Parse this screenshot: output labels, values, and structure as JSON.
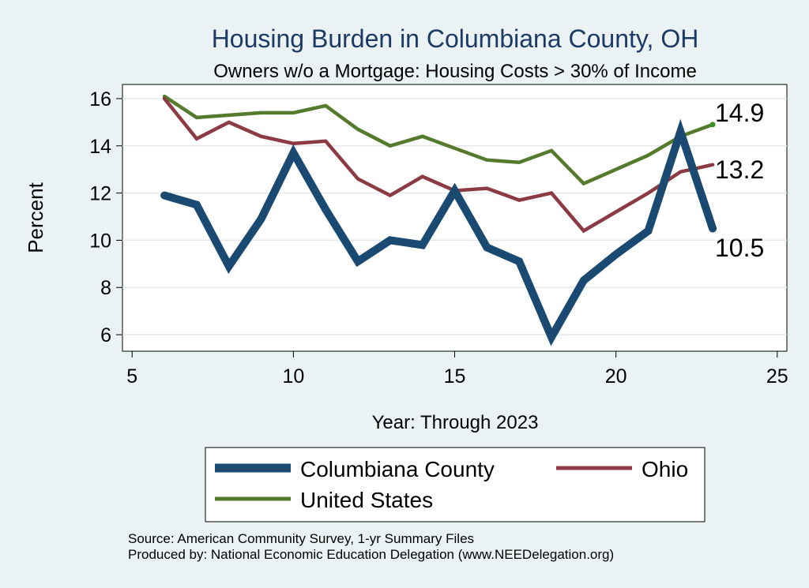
{
  "chart_data": {
    "type": "line",
    "title": "Housing Burden in Columbiana County, OH",
    "subtitle": "Owners w/o a Mortgage: Housing Costs > 30% of Income",
    "xlabel": "Year: Through 2023",
    "ylabel": "Percent",
    "xlim": [
      4.7,
      25.3
    ],
    "ylim": [
      5.3,
      16.6
    ],
    "xticks": [
      5,
      10,
      15,
      20,
      25
    ],
    "yticks": [
      6,
      8,
      10,
      12,
      14,
      16
    ],
    "grid": true,
    "legend_position": "bottom",
    "series": [
      {
        "name": "Columbiana County",
        "color": "#1a4a72",
        "width": "thick",
        "x": [
          6,
          7,
          8,
          9,
          10,
          11,
          12,
          13,
          14,
          15,
          16,
          17,
          18,
          19,
          20,
          21,
          22,
          23
        ],
        "values": [
          11.9,
          11.5,
          8.9,
          10.9,
          13.7,
          11.3,
          9.1,
          10.0,
          9.8,
          12.1,
          9.7,
          9.1,
          5.9,
          8.3,
          9.4,
          10.4,
          14.6,
          10.5
        ],
        "end_label": "10.5"
      },
      {
        "name": "Ohio",
        "color": "#8c3a44",
        "width": "medium",
        "x": [
          6,
          7,
          8,
          9,
          10,
          11,
          12,
          13,
          14,
          15,
          16,
          17,
          18,
          19,
          20,
          21,
          22,
          23
        ],
        "values": [
          16.0,
          14.3,
          15.0,
          14.4,
          14.1,
          14.2,
          12.6,
          11.9,
          12.7,
          12.1,
          12.2,
          11.7,
          12.0,
          10.4,
          11.2,
          12.0,
          12.9,
          13.2
        ],
        "end_label": "13.2"
      },
      {
        "name": "United States",
        "color": "#557a2c",
        "width": "medium",
        "x": [
          6,
          7,
          8,
          9,
          10,
          11,
          12,
          13,
          14,
          15,
          16,
          17,
          18,
          19,
          20,
          21,
          22,
          23
        ],
        "values": [
          16.1,
          15.2,
          15.3,
          15.4,
          15.4,
          15.7,
          14.7,
          14.0,
          14.4,
          13.9,
          13.4,
          13.3,
          13.8,
          12.4,
          13.0,
          13.6,
          14.4,
          14.9
        ],
        "end_label": "14.9"
      }
    ]
  },
  "footer": {
    "source": "Source: American Community Survey, 1-yr Summary Files",
    "produced": "Produced by: National Economic Education Delegation (www.NEEDelegation.org)"
  },
  "colors": {
    "background": "#eaf2f3",
    "plot_background": "#ffffff",
    "title": "#1c3a64"
  }
}
